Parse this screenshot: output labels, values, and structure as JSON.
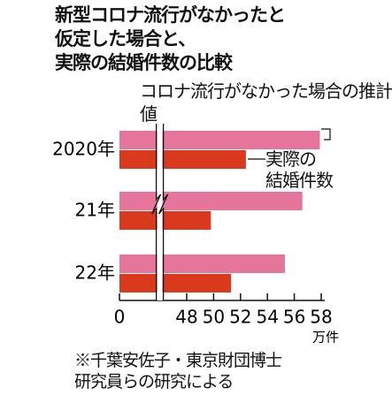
{
  "chart_data": {
    "type": "bar",
    "orientation": "horizontal",
    "title": "新型コロナ流行がなかったと\n仮定した場合と、\n実際の結婚件数の比較",
    "categories": [
      "2020年",
      "21年",
      "22年"
    ],
    "series": [
      {
        "name": "コロナ流行がなかった場合の推計値",
        "color": "#e5759b",
        "values": [
          57.9,
          56.6,
          55.3
        ]
      },
      {
        "name": "実際の\n結婚件数",
        "color": "#d93a1e",
        "values": [
          52.4,
          49.8,
          51.3
        ]
      }
    ],
    "xlim": [
      0,
      58
    ],
    "axis_break": [
      1,
      44
    ],
    "xticks": [
      0,
      48,
      50,
      52,
      54,
      56,
      58
    ],
    "x_unit": "万件",
    "note": "※千葉安佐子・東京財団博士\n研究員らの研究による"
  }
}
